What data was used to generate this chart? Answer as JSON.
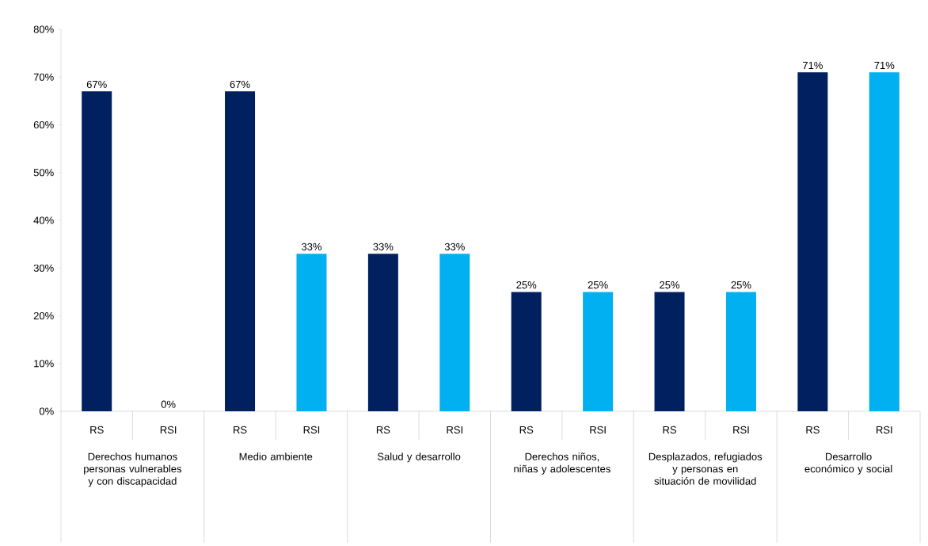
{
  "chart_data": {
    "type": "bar",
    "categories": [
      "RS",
      "RSI",
      "RS",
      "RSI",
      "RS",
      "RSI",
      "RS",
      "RSI",
      "RS",
      "RSI",
      "RS",
      "RSI"
    ],
    "values": [
      67,
      0,
      67,
      33,
      33,
      33,
      25,
      25,
      25,
      25,
      71,
      71
    ],
    "colors": [
      "#002060",
      "#00b0f0",
      "#002060",
      "#00b0f0",
      "#002060",
      "#00b0f0",
      "#002060",
      "#00b0f0",
      "#002060",
      "#00b0f0",
      "#002060",
      "#00b0f0"
    ],
    "value_labels": [
      "67%",
      "0%",
      "67%",
      "33%",
      "33%",
      "33%",
      "25%",
      "25%",
      "25%",
      "25%",
      "71%",
      "71%"
    ],
    "ylim": [
      0,
      80
    ],
    "yticks": [
      {
        "value": 0,
        "label": "0%"
      },
      {
        "value": 10,
        "label": "10%"
      },
      {
        "value": 20,
        "label": "20%"
      },
      {
        "value": 30,
        "label": "30%"
      },
      {
        "value": 40,
        "label": "40%"
      },
      {
        "value": 50,
        "label": "50%"
      },
      {
        "value": 60,
        "label": "60%"
      },
      {
        "value": 70,
        "label": "70%"
      },
      {
        "value": 80,
        "label": "80%"
      }
    ],
    "annotations": [
      "Derechos humanos personas vulnerables y con discapacidad",
      "Medio ambiente",
      "Salud y desarrollo",
      "Derechos niños, niñas y adolescentes",
      "Desplazados, refugiados y personas en situación de movilidad",
      "Desarrollo económico y social"
    ],
    "data_labels": false
  }
}
